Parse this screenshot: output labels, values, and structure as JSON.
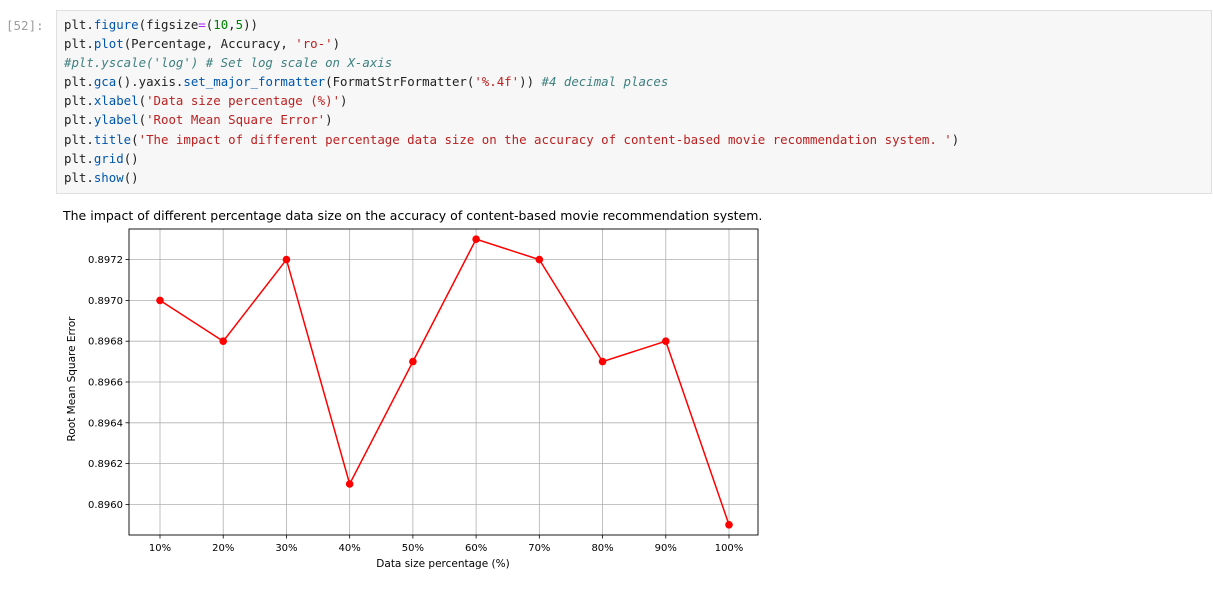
{
  "cell": {
    "prompt": "[52]:",
    "code_lines": [
      [
        {
          "c": "kw-obj",
          "t": "plt."
        },
        {
          "c": "fn",
          "t": "figure"
        },
        {
          "c": "kw-obj",
          "t": "(figsize"
        },
        {
          "c": "op",
          "t": "="
        },
        {
          "c": "kw-obj",
          "t": "("
        },
        {
          "c": "num",
          "t": "10"
        },
        {
          "c": "kw-obj",
          "t": ","
        },
        {
          "c": "num",
          "t": "5"
        },
        {
          "c": "kw-obj",
          "t": "))"
        }
      ],
      [
        {
          "c": "kw-obj",
          "t": "plt."
        },
        {
          "c": "fn",
          "t": "plot"
        },
        {
          "c": "kw-obj",
          "t": "(Percentage, Accuracy, "
        },
        {
          "c": "str",
          "t": "'ro-'"
        },
        {
          "c": "kw-obj",
          "t": ")"
        }
      ],
      [
        {
          "c": "cmt",
          "t": "#plt.yscale('log') # Set log scale on X-axis"
        }
      ],
      [
        {
          "c": "kw-obj",
          "t": "plt."
        },
        {
          "c": "fn",
          "t": "gca"
        },
        {
          "c": "kw-obj",
          "t": "()."
        },
        {
          "c": "kw-obj",
          "t": "yaxis."
        },
        {
          "c": "fn",
          "t": "set_major_formatter"
        },
        {
          "c": "kw-obj",
          "t": "(FormatStrFormatter("
        },
        {
          "c": "str",
          "t": "'%.4f'"
        },
        {
          "c": "kw-obj",
          "t": ")) "
        },
        {
          "c": "cmt",
          "t": "#4 decimal places"
        }
      ],
      [
        {
          "c": "kw-obj",
          "t": "plt."
        },
        {
          "c": "fn",
          "t": "xlabel"
        },
        {
          "c": "kw-obj",
          "t": "("
        },
        {
          "c": "str",
          "t": "'Data size percentage (%)'"
        },
        {
          "c": "kw-obj",
          "t": ")"
        }
      ],
      [
        {
          "c": "kw-obj",
          "t": "plt."
        },
        {
          "c": "fn",
          "t": "ylabel"
        },
        {
          "c": "kw-obj",
          "t": "("
        },
        {
          "c": "str",
          "t": "'Root Mean Square Error'"
        },
        {
          "c": "kw-obj",
          "t": ")"
        }
      ],
      [
        {
          "c": "kw-obj",
          "t": "plt."
        },
        {
          "c": "fn",
          "t": "title"
        },
        {
          "c": "kw-obj",
          "t": "("
        },
        {
          "c": "str",
          "t": "'The impact of different percentage data size on the accuracy of content-based movie recommendation system. '"
        },
        {
          "c": "kw-obj",
          "t": ")"
        }
      ],
      [
        {
          "c": "kw-obj",
          "t": "plt."
        },
        {
          "c": "fn",
          "t": "grid"
        },
        {
          "c": "kw-obj",
          "t": "()"
        }
      ],
      [
        {
          "c": "kw-obj",
          "t": "plt."
        },
        {
          "c": "fn",
          "t": "show"
        },
        {
          "c": "kw-obj",
          "t": "()"
        }
      ]
    ]
  },
  "chart_data": {
    "type": "line",
    "title": "The impact of different percentage data size on the accuracy of content-based movie recommendation system.",
    "xlabel": "Data size percentage (%)",
    "ylabel": "Root Mean Square Error",
    "categories": [
      "10%",
      "20%",
      "30%",
      "40%",
      "50%",
      "60%",
      "70%",
      "80%",
      "90%",
      "100%"
    ],
    "values": [
      0.897,
      0.8968,
      0.8972,
      0.8961,
      0.8967,
      0.8973,
      0.8972,
      0.8967,
      0.8968,
      0.8959
    ],
    "yticks": [
      "0.8960",
      "0.8962",
      "0.8964",
      "0.8966",
      "0.8968",
      "0.8970",
      "0.8972"
    ],
    "ytick_values": [
      0.896,
      0.8962,
      0.8964,
      0.8966,
      0.8968,
      0.897,
      0.8972
    ],
    "ylim": [
      0.89585,
      0.89735
    ],
    "line_color": "#ff0000",
    "marker": "circle",
    "grid": true
  }
}
